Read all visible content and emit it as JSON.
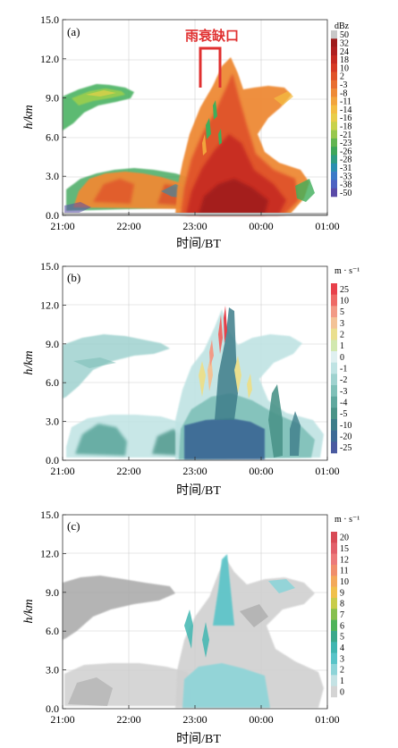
{
  "chart_data": [
    {
      "type": "heatmap",
      "panel_label": "(a)",
      "annotation": "雨衰缺口",
      "xlabel": "时间/BT",
      "ylabel": "h/km",
      "x_ticks": [
        "21:00",
        "22:00",
        "23:00",
        "00:00",
        "01:00"
      ],
      "y_ticks": [
        "0.0",
        "3.0",
        "6.0",
        "9.0",
        "12.0",
        "15.0"
      ],
      "ylim": [
        0,
        15
      ],
      "colorbar": {
        "unit": "dBz",
        "labels": [
          "50",
          "32",
          "24",
          "18",
          "10",
          "2",
          "-3",
          "-8",
          "-11",
          "-14",
          "-16",
          "-18",
          "-21",
          "-23",
          "-26",
          "-28",
          "-31",
          "-33",
          "-38",
          "-50"
        ],
        "colors": [
          "#c8c8c8",
          "#9e1b1b",
          "#b02020",
          "#c62a22",
          "#d63a25",
          "#e0532a",
          "#e86e30",
          "#ee8a36",
          "#f2a43c",
          "#f3bd42",
          "#e8cd4a",
          "#c8d24c",
          "#98c84e",
          "#62b552",
          "#3da65a",
          "#2e9c82",
          "#2a8fb0",
          "#3a7ac8",
          "#4d62c2",
          "#5a4aa8"
        ]
      },
      "grid": true
    },
    {
      "type": "heatmap",
      "panel_label": "(b)",
      "xlabel": "时间/BT",
      "ylabel": "h/km",
      "x_ticks": [
        "21:00",
        "22:00",
        "23:00",
        "00:00",
        "01:00"
      ],
      "y_ticks": [
        "0.0",
        "3.0",
        "6.0",
        "9.0",
        "12.0",
        "15.0"
      ],
      "ylim": [
        0,
        15
      ],
      "colorbar": {
        "unit": "m · s⁻¹",
        "labels": [
          "25",
          "10",
          "5",
          "3",
          "2",
          "1",
          "0",
          "-1",
          "-2",
          "-3",
          "-4",
          "-5",
          "-10",
          "-20",
          "-25"
        ],
        "colors": [
          "#e8404a",
          "#ee6a66",
          "#f29a86",
          "#f3c296",
          "#eadf8e",
          "#d2e8b0",
          "#dff0f0",
          "#bfe3e3",
          "#9fd2cf",
          "#7fc0b8",
          "#5fa89e",
          "#4a9488",
          "#3d7d8a",
          "#3e6b96",
          "#4a5aa0"
        ]
      },
      "grid": true
    },
    {
      "type": "heatmap",
      "panel_label": "(c)",
      "xlabel": "时间/BT",
      "ylabel": "h/km",
      "x_ticks": [
        "21:00",
        "22:00",
        "23:00",
        "00:00",
        "01:00"
      ],
      "y_ticks": [
        "0.0",
        "3.0",
        "6.0",
        "9.0",
        "12.0",
        "15.0"
      ],
      "ylim": [
        0,
        15
      ],
      "colorbar": {
        "unit": "m · s⁻¹",
        "labels": [
          "20",
          "15",
          "12",
          "11",
          "10",
          "9",
          "8",
          "7",
          "6",
          "5",
          "4",
          "3",
          "2",
          "1",
          "0"
        ],
        "colors": [
          "#d84a55",
          "#e2606a",
          "#ec7a7a",
          "#f08e6c",
          "#f3a95a",
          "#f0c04a",
          "#c8cc4a",
          "#86c04e",
          "#4fb35a",
          "#3aa88a",
          "#40b6b0",
          "#58c4c8",
          "#8dd4d8",
          "#c4e2e4",
          "#d4d4d4"
        ]
      },
      "grid": true
    }
  ]
}
